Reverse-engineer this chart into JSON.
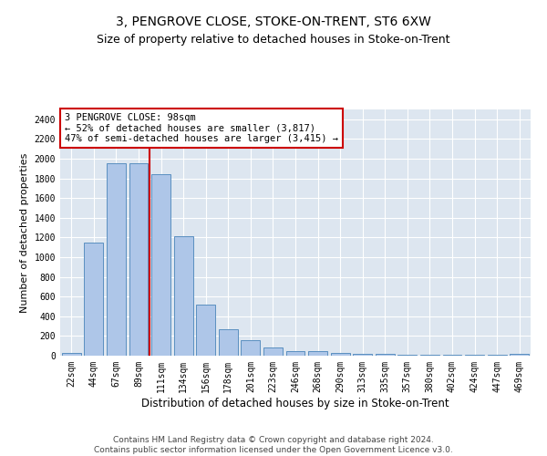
{
  "title": "3, PENGROVE CLOSE, STOKE-ON-TRENT, ST6 6XW",
  "subtitle": "Size of property relative to detached houses in Stoke-on-Trent",
  "xlabel": "Distribution of detached houses by size in Stoke-on-Trent",
  "ylabel": "Number of detached properties",
  "categories": [
    "22sqm",
    "44sqm",
    "67sqm",
    "89sqm",
    "111sqm",
    "134sqm",
    "156sqm",
    "178sqm",
    "201sqm",
    "223sqm",
    "246sqm",
    "268sqm",
    "290sqm",
    "313sqm",
    "335sqm",
    "357sqm",
    "380sqm",
    "402sqm",
    "424sqm",
    "447sqm",
    "469sqm"
  ],
  "values": [
    30,
    1150,
    1950,
    1950,
    1840,
    1210,
    515,
    265,
    155,
    80,
    50,
    45,
    25,
    20,
    15,
    5,
    5,
    5,
    5,
    5,
    20
  ],
  "bar_color": "#aec6e8",
  "bar_edge_color": "#5a8fc0",
  "vline_x": 3.5,
  "vline_color": "#cc0000",
  "annotation_line1": "3 PENGROVE CLOSE: 98sqm",
  "annotation_line2": "← 52% of detached houses are smaller (3,817)",
  "annotation_line3": "47% of semi-detached houses are larger (3,415) →",
  "annotation_box_color": "#cc0000",
  "ylim": [
    0,
    2500
  ],
  "yticks": [
    0,
    200,
    400,
    600,
    800,
    1000,
    1200,
    1400,
    1600,
    1800,
    2000,
    2200,
    2400
  ],
  "background_color": "#dde6f0",
  "footer_line1": "Contains HM Land Registry data © Crown copyright and database right 2024.",
  "footer_line2": "Contains public sector information licensed under the Open Government Licence v3.0.",
  "title_fontsize": 10,
  "subtitle_fontsize": 9,
  "xlabel_fontsize": 8.5,
  "ylabel_fontsize": 8,
  "tick_fontsize": 7,
  "footer_fontsize": 6.5,
  "ann_fontsize": 7.5
}
